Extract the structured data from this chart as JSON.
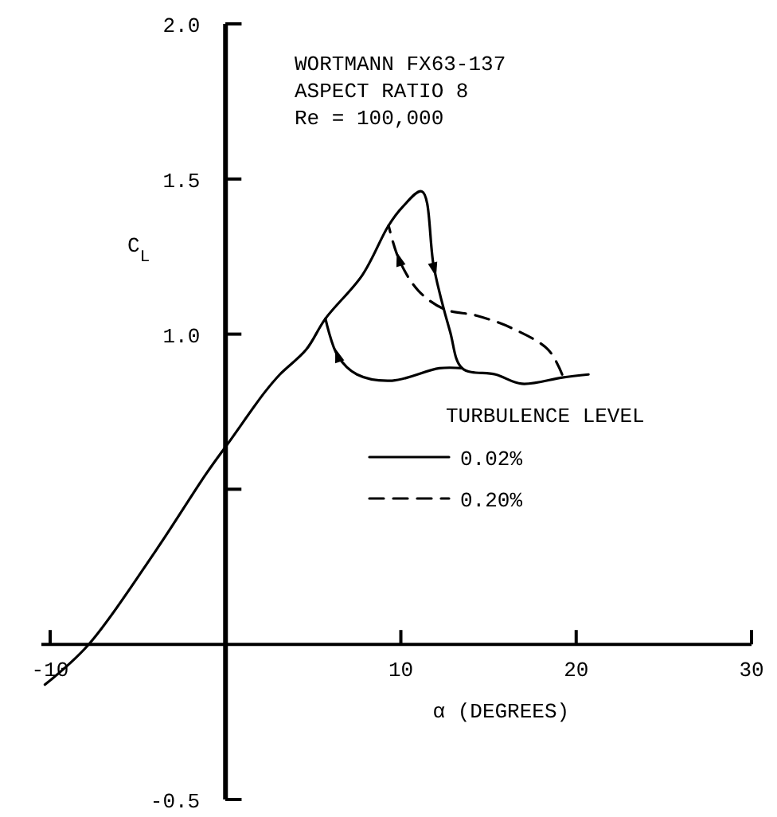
{
  "chart_data": {
    "type": "line",
    "xlabel": "α (DEGREES)",
    "ylabel": "C$_{L}$",
    "legend_title": "TURBULENCE LEVEL",
    "annotations": [
      "WORTMANN FX63-137",
      "ASPECT RATIO 8",
      "Re = 100,000"
    ],
    "xlim": [
      -10.5,
      30
    ],
    "xticks": [
      -10,
      10,
      20,
      30
    ],
    "ylim": [
      -0.5,
      2.0
    ],
    "yticks": [
      {
        "value": 2.0,
        "label": "2.0"
      },
      {
        "value": 1.5,
        "label": "1.5"
      },
      {
        "value": 1.0,
        "label": "1.0"
      },
      {
        "value": 0.5,
        "label": null
      },
      {
        "value": -0.5,
        "label": "-0.5"
      }
    ],
    "grid": false,
    "legend": "right",
    "marker": "none",
    "series": [
      {
        "name": "0.02%",
        "color": "#000000",
        "line_style": "solid",
        "x": [
          -10.3,
          -7.8,
          -4.0,
          -1.1,
          0.3,
          2.2,
          3.1,
          4.6,
          5.7,
          7.8,
          9.3,
          10.1,
          11.2,
          11.9,
          12.8,
          13.5,
          15.4,
          16.9,
          19.2,
          20.7
        ],
        "values": [
          -0.13,
          0,
          0.3,
          0.55,
          0.66,
          0.81,
          0.87,
          0.95,
          1.05,
          1.19,
          1.35,
          1.41,
          1.46,
          1.21,
          1.01,
          0.89,
          0.87,
          0.84,
          0.86,
          0.87
        ]
      },
      {
        "color": "#000000",
        "line_style": "solid",
        "x": [
          13.5,
          12.2,
          9.5,
          7.5,
          6.4,
          5.7
        ],
        "values": [
          0.89,
          0.89,
          0.85,
          0.87,
          0.93,
          1.05
        ]
      },
      {
        "name": "0.20%",
        "color": "#000000",
        "line_style": "dashed",
        "x": [
          19.2,
          18.4,
          16.3,
          14.3,
          12.5,
          11.0,
          9.9,
          9.3
        ],
        "values": [
          0.87,
          0.95,
          1.02,
          1.06,
          1.08,
          1.14,
          1.24,
          1.35
        ]
      }
    ]
  }
}
